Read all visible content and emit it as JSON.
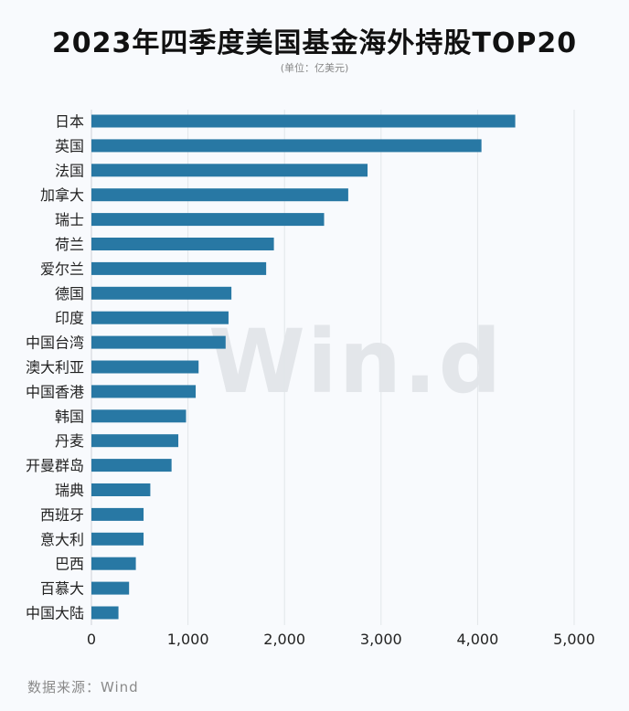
{
  "title": "2023年四季度美国基金海外持股TOP20",
  "subtitle": "(单位：亿美元)",
  "watermark": "Win.d",
  "source": "数据来源：Wind",
  "chart_data": {
    "type": "bar",
    "orientation": "horizontal",
    "title": "2023年四季度美国基金海外持股TOP20",
    "subtitle": "(单位：亿美元)",
    "categories": [
      "日本",
      "英国",
      "法国",
      "加拿大",
      "瑞士",
      "荷兰",
      "爱尔兰",
      "德国",
      "印度",
      "中国台湾",
      "澳大利亚",
      "中国香港",
      "韩国",
      "丹麦",
      "开曼群岛",
      "瑞典",
      "西班牙",
      "意大利",
      "巴西",
      "百慕大",
      "中国大陆"
    ],
    "values": [
      4390,
      4040,
      2860,
      2660,
      2410,
      1890,
      1810,
      1450,
      1420,
      1390,
      1110,
      1080,
      980,
      900,
      830,
      610,
      540,
      540,
      460,
      390,
      280
    ],
    "xlim": [
      0,
      5000
    ],
    "xticks": [
      0,
      1000,
      2000,
      3000,
      4000,
      5000
    ],
    "xtick_labels": [
      "0",
      "1,000",
      "2,000",
      "3,000",
      "4,000",
      "5,000"
    ],
    "grid": "vertical",
    "bar_color": "#2878a4",
    "legend": "none"
  }
}
